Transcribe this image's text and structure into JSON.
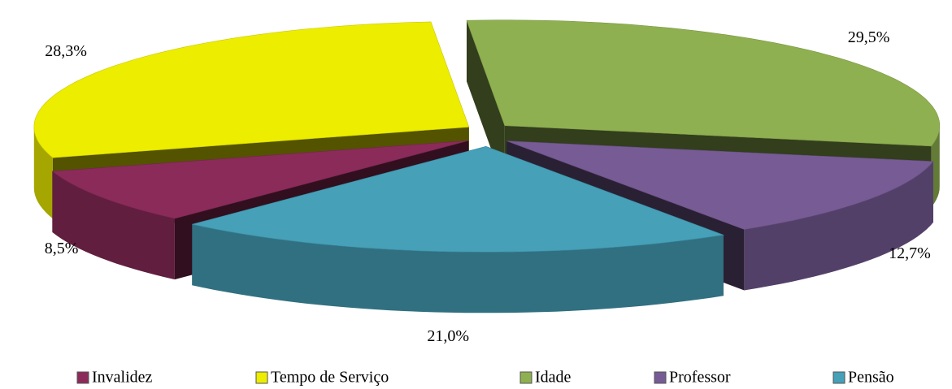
{
  "chart_data": {
    "type": "pie3d",
    "categories": [
      "Invalidez",
      "Tempo de Serviço",
      "Idade",
      "Professor",
      "Pensão"
    ],
    "values": [
      8.5,
      28.3,
      29.5,
      12.7,
      21.0
    ],
    "value_labels": [
      "8,5%",
      "28,3%",
      "29,5%",
      "12,7%",
      "21,0%"
    ],
    "colors": [
      "#8b2b5a",
      "#eded00",
      "#8fb050",
      "#775b95",
      "#45a0b8"
    ],
    "legend": "bottom"
  }
}
